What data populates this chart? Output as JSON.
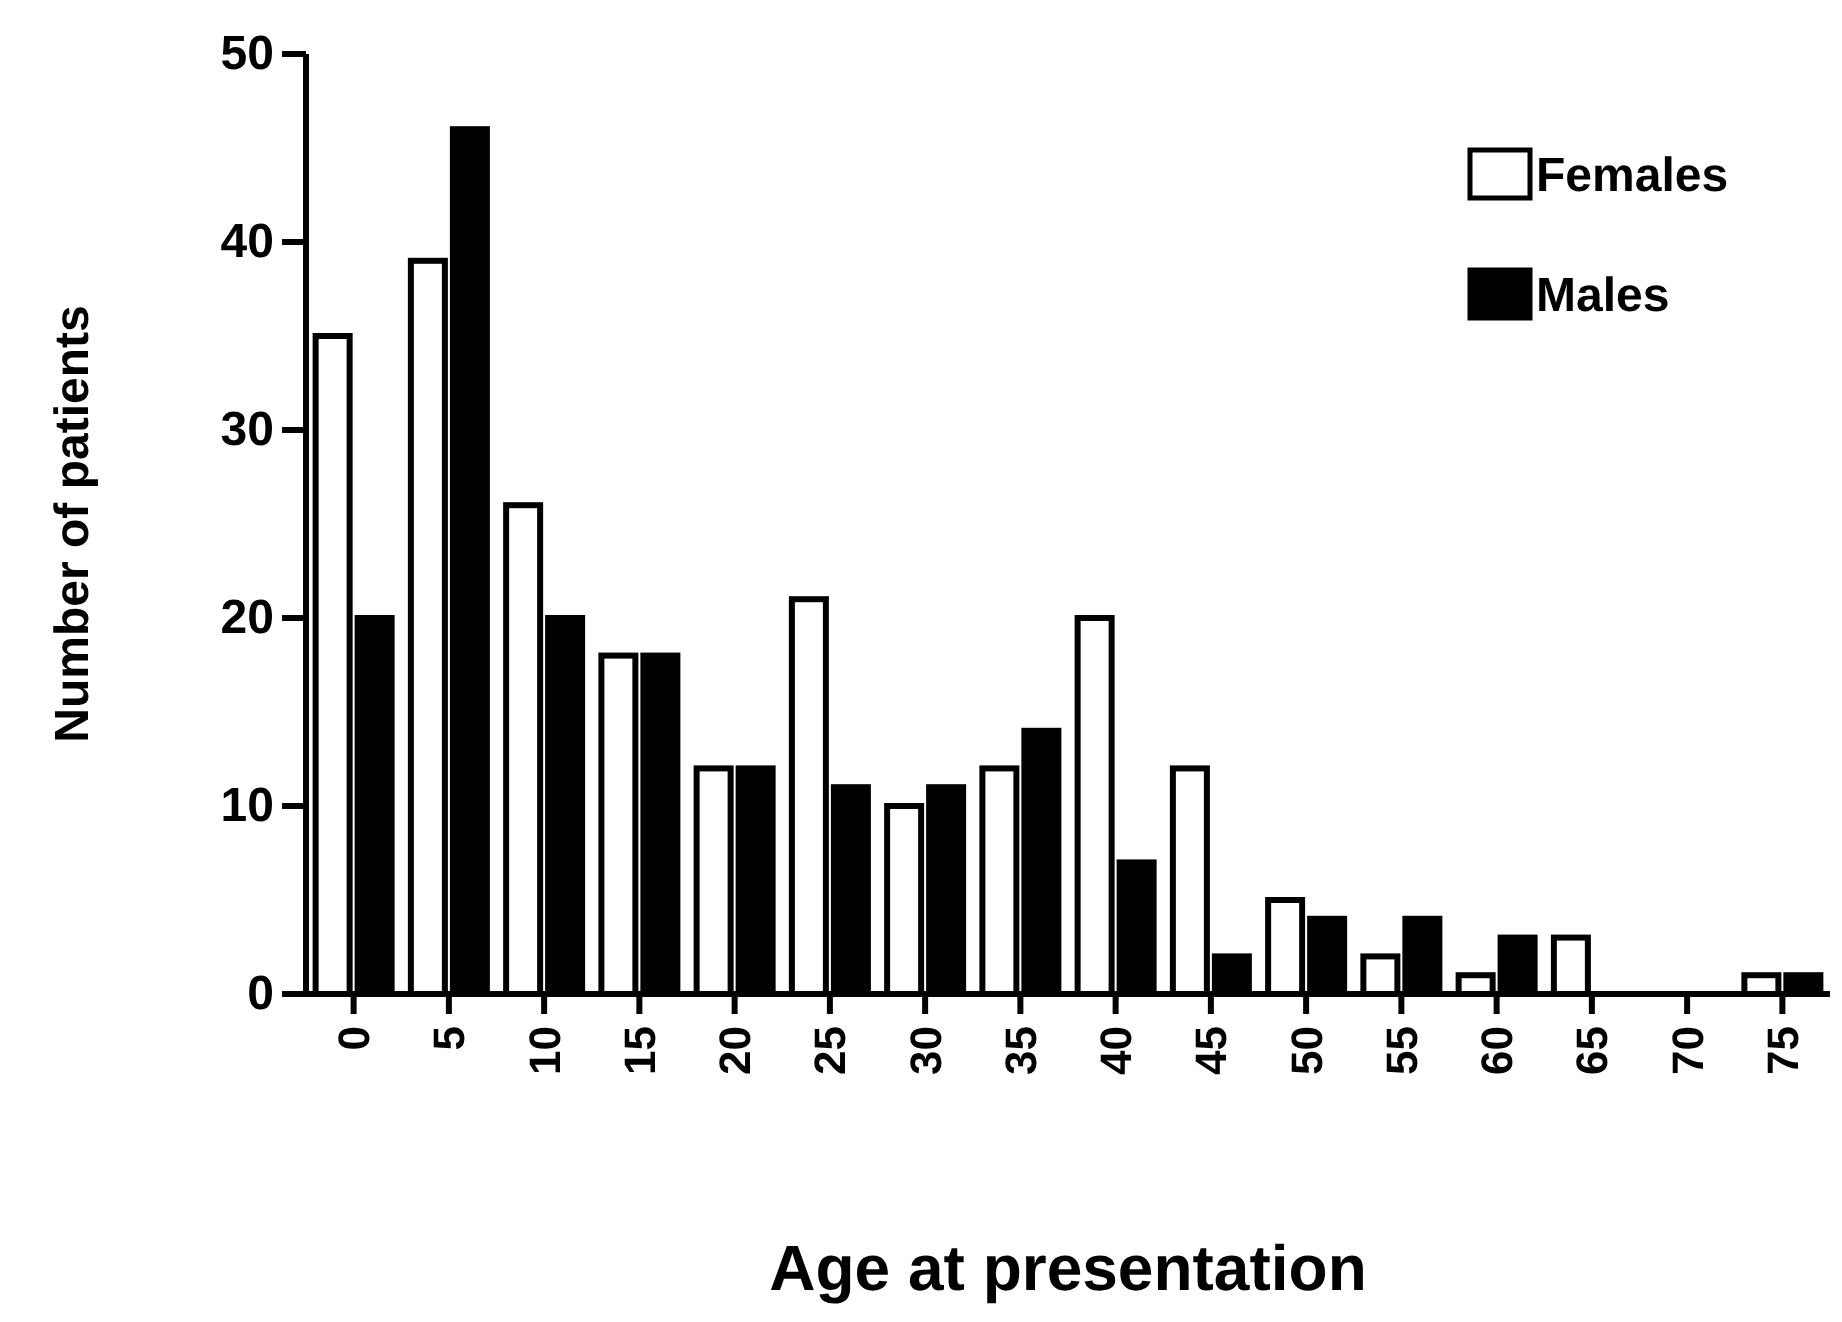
{
  "chart_data": {
    "type": "bar",
    "xlabel": "Age at presentation",
    "ylabel": "Number of patients",
    "categories": [
      "0",
      "5",
      "10",
      "15",
      "20",
      "25",
      "30",
      "35",
      "40",
      "45",
      "50",
      "55",
      "60",
      "65",
      "70",
      "75"
    ],
    "series": [
      {
        "name": "Females",
        "color": "#ffffff",
        "values": [
          35,
          39,
          26,
          18,
          12,
          21,
          10,
          12,
          20,
          12,
          5,
          2,
          1,
          3,
          0,
          1
        ]
      },
      {
        "name": "Males",
        "color": "#000000",
        "values": [
          20,
          46,
          20,
          18,
          12,
          11,
          11,
          14,
          7,
          2,
          4,
          4,
          3,
          0,
          0,
          1
        ]
      }
    ],
    "ylim": [
      0,
      50
    ],
    "yticks": [
      0,
      10,
      20,
      30,
      40,
      50
    ],
    "grid": false,
    "legend": "top right"
  }
}
